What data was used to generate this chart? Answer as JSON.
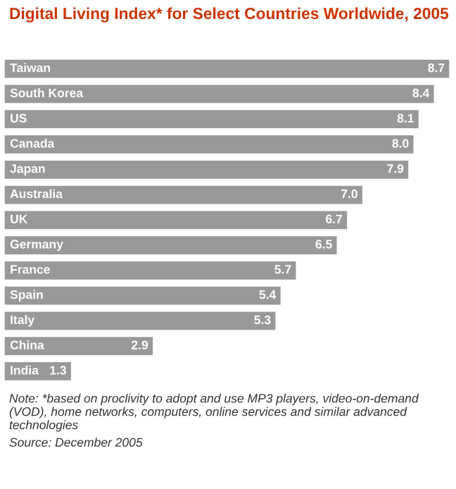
{
  "chart_data": {
    "type": "bar",
    "orientation": "horizontal",
    "title": "Digital Living Index* for Select Countries Worldwide, 2005",
    "categories": [
      "Taiwan",
      "South Korea",
      "US",
      "Canada",
      "Japan",
      "Australia",
      "UK",
      "Germany",
      "France",
      "Spain",
      "Italy",
      "China",
      "India"
    ],
    "values": [
      8.7,
      8.4,
      8.1,
      8.0,
      7.9,
      7.0,
      6.7,
      6.5,
      5.7,
      5.4,
      5.3,
      2.9,
      1.3
    ],
    "color": "#999999",
    "value_labels": [
      "8.7",
      "8.4",
      "8.1",
      "8.0",
      "7.9",
      "7.0",
      "6.7",
      "6.5",
      "5.7",
      "5.4",
      "5.3",
      "2.9",
      "1.3"
    ],
    "annotations": [
      "Note: *based on proclivity to adopt and use MP3 players, video-on-demand (VOD), home networks, computers, online services and similar advanced technologies",
      "Source: December 2005"
    ]
  }
}
